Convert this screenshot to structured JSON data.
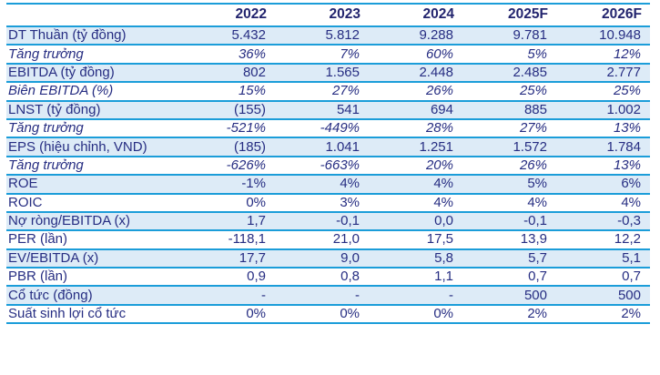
{
  "colors": {
    "text_navy": "#262d82",
    "header_navy": "#22246e",
    "border_cyan": "#1b9dd9",
    "row_shaded_bg": "#ddebf7",
    "row_plain_bg": "#ffffff"
  },
  "chart_data": {
    "type": "table",
    "title": "",
    "columns": [
      "",
      "2022",
      "2023",
      "2024",
      "2025F",
      "2026F"
    ],
    "rows": [
      {
        "label": "DT Thuần (tỷ đồng)",
        "italic": false,
        "shaded": true,
        "values": [
          "5.432",
          "5.812",
          "9.288",
          "9.781",
          "10.948"
        ]
      },
      {
        "label": "Tăng trưởng",
        "italic": true,
        "shaded": false,
        "values": [
          "36%",
          "7%",
          "60%",
          "5%",
          "12%"
        ]
      },
      {
        "label": "EBITDA (tỷ đồng)",
        "italic": false,
        "shaded": true,
        "values": [
          "802",
          "1.565",
          "2.448",
          "2.485",
          "2.777"
        ]
      },
      {
        "label": "Biên EBITDA (%)",
        "italic": true,
        "shaded": false,
        "values": [
          "15%",
          "27%",
          "26%",
          "25%",
          "25%"
        ]
      },
      {
        "label": "LNST (tỷ đồng)",
        "italic": false,
        "shaded": true,
        "values": [
          "(155)",
          "541",
          "694",
          "885",
          "1.002"
        ]
      },
      {
        "label": "Tăng trưởng",
        "italic": true,
        "shaded": false,
        "values": [
          "-521%",
          "-449%",
          "28%",
          "27%",
          "13%"
        ]
      },
      {
        "label": "EPS (hiệu chỉnh, VND)",
        "italic": false,
        "shaded": true,
        "values": [
          "(185)",
          "1.041",
          "1.251",
          "1.572",
          "1.784"
        ]
      },
      {
        "label": "Tăng trưởng",
        "italic": true,
        "shaded": false,
        "values": [
          "-626%",
          "-663%",
          "20%",
          "26%",
          "13%"
        ]
      },
      {
        "label": "ROE",
        "italic": false,
        "shaded": true,
        "values": [
          "-1%",
          "4%",
          "4%",
          "5%",
          "6%"
        ]
      },
      {
        "label": "ROIC",
        "italic": false,
        "shaded": false,
        "values": [
          "0%",
          "3%",
          "4%",
          "4%",
          "4%"
        ]
      },
      {
        "label": "Nợ ròng/EBITDA (x)",
        "italic": false,
        "shaded": true,
        "values": [
          "1,7",
          "-0,1",
          "0,0",
          "-0,1",
          "-0,3"
        ]
      },
      {
        "label": "PER (lần)",
        "italic": false,
        "shaded": false,
        "values": [
          "-118,1",
          "21,0",
          "17,5",
          "13,9",
          "12,2"
        ]
      },
      {
        "label": "EV/EBITDA (x)",
        "italic": false,
        "shaded": true,
        "values": [
          "17,7",
          "9,0",
          "5,8",
          "5,7",
          "5,1"
        ]
      },
      {
        "label": "PBR (lần)",
        "italic": false,
        "shaded": false,
        "values": [
          "0,9",
          "0,8",
          "1,1",
          "0,7",
          "0,7"
        ]
      },
      {
        "label": "Cổ tức (đồng)",
        "italic": false,
        "shaded": true,
        "values": [
          "-",
          "-",
          "-",
          "500",
          "500"
        ]
      },
      {
        "label": "Suất sinh lợi cổ tức",
        "italic": false,
        "shaded": false,
        "values": [
          "0%",
          "0%",
          "0%",
          "2%",
          "2%"
        ]
      }
    ]
  }
}
